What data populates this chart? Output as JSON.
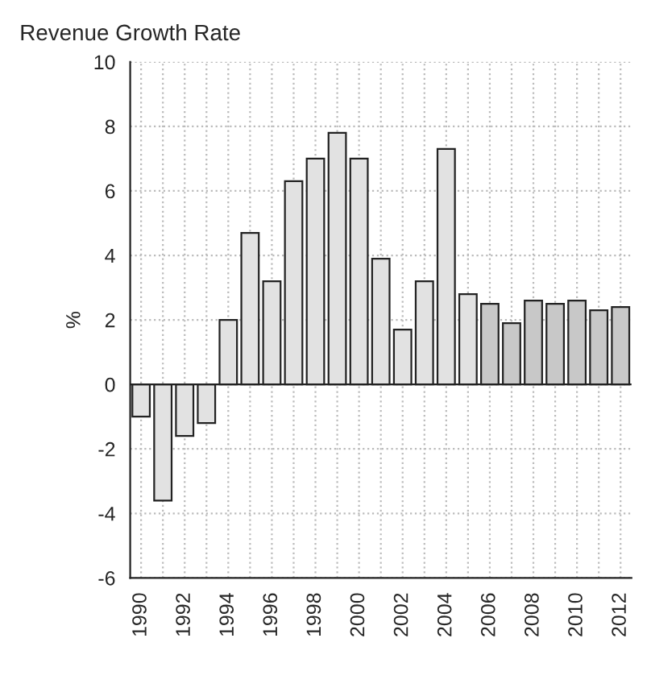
{
  "chart_data": {
    "type": "bar",
    "title": "Revenue Growth Rate",
    "ylabel": "%",
    "categories": [
      "1990",
      null,
      "1992",
      null,
      "1994",
      null,
      "1996",
      null,
      "1998",
      null,
      "2000",
      null,
      "2002",
      null,
      "2004",
      null,
      "2006",
      null,
      "2008",
      null,
      "2010",
      null,
      "2012"
    ],
    "values": [
      -1.0,
      -3.6,
      -1.6,
      -1.2,
      2.0,
      4.7,
      3.2,
      6.3,
      7.0,
      7.8,
      7.0,
      3.9,
      1.7,
      3.2,
      7.3,
      2.8,
      2.5,
      1.9,
      2.6,
      2.5,
      2.6,
      2.3,
      2.4
    ],
    "colors": [
      "#e2e2e2",
      "#e2e2e2",
      "#e2e2e2",
      "#e2e2e2",
      "#e2e2e2",
      "#e2e2e2",
      "#e2e2e2",
      "#e2e2e2",
      "#e2e2e2",
      "#e2e2e2",
      "#e2e2e2",
      "#e2e2e2",
      "#e2e2e2",
      "#e2e2e2",
      "#e2e2e2",
      "#e2e2e2",
      "#c8c8c8",
      "#c8c8c8",
      "#c8c8c8",
      "#c8c8c8",
      "#c8c8c8",
      "#c8c8c8",
      "#c8c8c8"
    ],
    "ylim": [
      -6,
      10
    ],
    "yticks": [
      -6,
      -4,
      -2,
      0,
      2,
      4,
      6,
      8,
      10
    ],
    "grid": true
  }
}
